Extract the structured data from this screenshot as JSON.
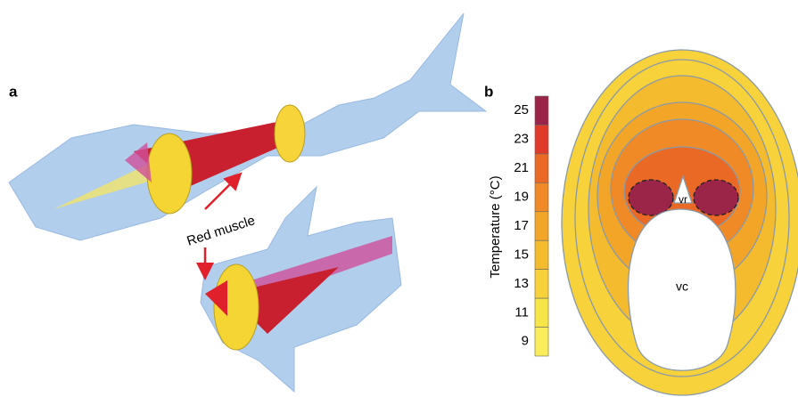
{
  "panel_a": {
    "label": "a",
    "annotation": "Red muscle"
  },
  "panel_b": {
    "label": "b",
    "colorbar": {
      "title": "Temperature (°C)",
      "ticks": [
        25,
        23,
        21,
        19,
        17,
        15,
        13,
        11,
        9
      ],
      "colors": [
        "#9b2449",
        "#e03a2a",
        "#ea6a25",
        "#ef8a26",
        "#f3a528",
        "#f5bb2e",
        "#f7d23a",
        "#f7e447",
        "#f9ee5a"
      ]
    },
    "labels": {
      "vr": "vr",
      "vc": "vc"
    }
  }
}
